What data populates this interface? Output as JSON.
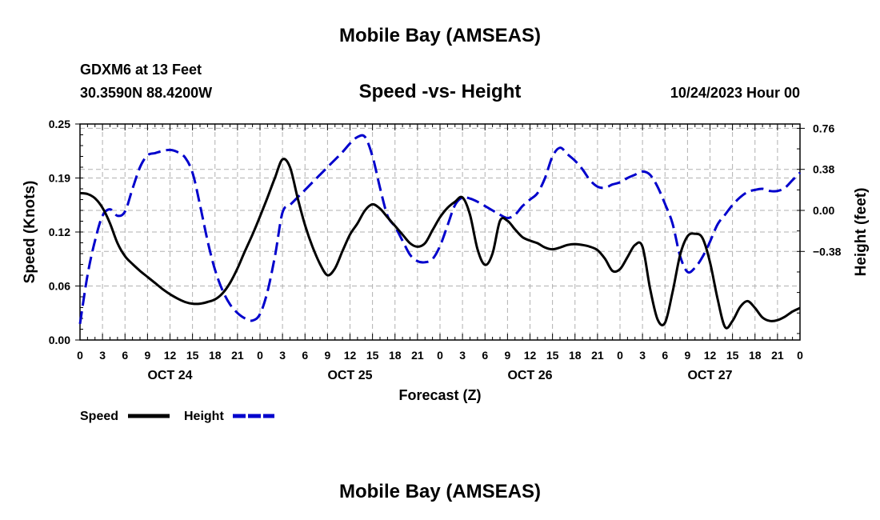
{
  "page": {
    "title": "Mobile Bay (AMSEAS)",
    "station": "GDXM6 at 13 Feet",
    "coordinates": "30.3590N  88.4200W",
    "subtitle": "Speed -vs- Height",
    "datetime": "10/24/2023 Hour 00",
    "bottom_title": "Mobile Bay (AMSEAS)"
  },
  "chart_data": {
    "type": "line",
    "title": "Speed -vs- Height",
    "xlabel": "Forecast (Z)",
    "ylabel": "Speed (Knots)",
    "y2label": "Height (feet)",
    "xlim": [
      0,
      96
    ],
    "ylim": [
      0.0,
      0.25
    ],
    "y2lim": [
      -1.2,
      0.8
    ],
    "grid": true,
    "legend_position": "bottom-left",
    "x_ticks": [
      0,
      3,
      6,
      9,
      12,
      15,
      18,
      21,
      24,
      27,
      30,
      33,
      36,
      39,
      42,
      45,
      48,
      51,
      54,
      57,
      60,
      63,
      66,
      69,
      72,
      75,
      78,
      81,
      84,
      87,
      90,
      93,
      96
    ],
    "x_tick_labels": [
      "0",
      "3",
      "6",
      "9",
      "12",
      "15",
      "18",
      "21",
      "0",
      "3",
      "6",
      "9",
      "12",
      "15",
      "18",
      "21",
      "0",
      "3",
      "6",
      "9",
      "12",
      "15",
      "18",
      "21",
      "0",
      "3",
      "6",
      "9",
      "12",
      "15",
      "18",
      "21",
      "0"
    ],
    "day_labels": [
      {
        "x": 12,
        "label": "OCT 24"
      },
      {
        "x": 36,
        "label": "OCT 25"
      },
      {
        "x": 60,
        "label": "OCT 26"
      },
      {
        "x": 84,
        "label": "OCT 27"
      }
    ],
    "y_ticks": [
      0.0,
      0.0625,
      0.125,
      0.1875,
      0.25
    ],
    "y_tick_labels": [
      "0.00",
      "0.06",
      "0.12",
      "0.19",
      "0.25"
    ],
    "y2_ticks": [
      -0.38,
      0.0,
      0.38,
      0.76
    ],
    "y2_tick_labels": [
      "-0.38",
      "0.00",
      "0.38",
      "0.76"
    ],
    "series": [
      {
        "name": "Speed",
        "axis": "left",
        "color": "#000000",
        "dash": "solid",
        "points": [
          [
            0,
            0.17
          ],
          [
            1,
            0.169
          ],
          [
            2,
            0.164
          ],
          [
            3,
            0.153
          ],
          [
            4,
            0.135
          ],
          [
            5,
            0.112
          ],
          [
            6,
            0.097
          ],
          [
            7,
            0.088
          ],
          [
            8,
            0.08
          ],
          [
            9,
            0.073
          ],
          [
            10,
            0.066
          ],
          [
            11,
            0.059
          ],
          [
            12,
            0.053
          ],
          [
            13,
            0.048
          ],
          [
            14,
            0.044
          ],
          [
            15,
            0.042
          ],
          [
            16,
            0.042
          ],
          [
            17,
            0.044
          ],
          [
            18,
            0.047
          ],
          [
            19,
            0.054
          ],
          [
            20,
            0.066
          ],
          [
            21,
            0.083
          ],
          [
            22,
            0.103
          ],
          [
            23,
            0.122
          ],
          [
            24,
            0.143
          ],
          [
            25,
            0.165
          ],
          [
            26,
            0.188
          ],
          [
            27,
            0.209
          ],
          [
            28,
            0.2
          ],
          [
            29,
            0.165
          ],
          [
            30,
            0.133
          ],
          [
            31,
            0.108
          ],
          [
            32,
            0.088
          ],
          [
            33,
            0.075
          ],
          [
            34,
            0.083
          ],
          [
            35,
            0.103
          ],
          [
            36,
            0.122
          ],
          [
            37,
            0.135
          ],
          [
            38,
            0.15
          ],
          [
            39,
            0.157
          ],
          [
            40,
            0.152
          ],
          [
            41,
            0.142
          ],
          [
            42,
            0.132
          ],
          [
            43,
            0.122
          ],
          [
            44,
            0.112
          ],
          [
            45,
            0.108
          ],
          [
            46,
            0.112
          ],
          [
            47,
            0.127
          ],
          [
            48,
            0.142
          ],
          [
            49,
            0.153
          ],
          [
            50,
            0.16
          ],
          [
            51,
            0.165
          ],
          [
            52,
            0.145
          ],
          [
            53,
            0.105
          ],
          [
            54,
            0.087
          ],
          [
            55,
            0.1
          ],
          [
            56,
            0.138
          ],
          [
            57,
            0.138
          ],
          [
            58,
            0.128
          ],
          [
            59,
            0.119
          ],
          [
            60,
            0.115
          ],
          [
            61,
            0.112
          ],
          [
            62,
            0.107
          ],
          [
            63,
            0.105
          ],
          [
            64,
            0.107
          ],
          [
            65,
            0.11
          ],
          [
            66,
            0.111
          ],
          [
            67,
            0.11
          ],
          [
            68,
            0.108
          ],
          [
            69,
            0.104
          ],
          [
            70,
            0.094
          ],
          [
            71,
            0.08
          ],
          [
            72,
            0.082
          ],
          [
            73,
            0.096
          ],
          [
            74,
            0.11
          ],
          [
            75,
            0.108
          ],
          [
            76,
            0.06
          ],
          [
            77,
            0.024
          ],
          [
            78,
            0.02
          ],
          [
            79,
            0.055
          ],
          [
            80,
            0.098
          ],
          [
            81,
            0.12
          ],
          [
            82,
            0.123
          ],
          [
            83,
            0.118
          ],
          [
            84,
            0.09
          ],
          [
            85,
            0.048
          ],
          [
            86,
            0.015
          ],
          [
            87,
            0.022
          ],
          [
            88,
            0.038
          ],
          [
            89,
            0.045
          ],
          [
            90,
            0.037
          ],
          [
            91,
            0.026
          ],
          [
            92,
            0.022
          ],
          [
            93,
            0.023
          ],
          [
            94,
            0.027
          ],
          [
            95,
            0.033
          ],
          [
            96,
            0.037
          ]
        ]
      },
      {
        "name": "Height",
        "axis": "right",
        "color": "#0000cc",
        "dash": "dashed",
        "points": [
          [
            0,
            -1.05
          ],
          [
            1,
            -0.6
          ],
          [
            2,
            -0.28
          ],
          [
            3,
            -0.05
          ],
          [
            4,
            0.01
          ],
          [
            5,
            -0.05
          ],
          [
            6,
            -0.01
          ],
          [
            7,
            0.2
          ],
          [
            8,
            0.4
          ],
          [
            9,
            0.51
          ],
          [
            10,
            0.53
          ],
          [
            11,
            0.55
          ],
          [
            12,
            0.56
          ],
          [
            13,
            0.54
          ],
          [
            14,
            0.49
          ],
          [
            15,
            0.35
          ],
          [
            16,
            0.05
          ],
          [
            17,
            -0.28
          ],
          [
            18,
            -0.55
          ],
          [
            19,
            -0.74
          ],
          [
            20,
            -0.87
          ],
          [
            21,
            -0.95
          ],
          [
            22,
            -1.0
          ],
          [
            23,
            -1.02
          ],
          [
            24,
            -0.96
          ],
          [
            25,
            -0.75
          ],
          [
            26,
            -0.42
          ],
          [
            27,
            -0.02
          ],
          [
            28,
            0.05
          ],
          [
            29,
            0.12
          ],
          [
            30,
            0.19
          ],
          [
            31,
            0.26
          ],
          [
            32,
            0.33
          ],
          [
            33,
            0.4
          ],
          [
            34,
            0.47
          ],
          [
            35,
            0.54
          ],
          [
            36,
            0.62
          ],
          [
            37,
            0.68
          ],
          [
            38,
            0.68
          ],
          [
            39,
            0.5
          ],
          [
            40,
            0.21
          ],
          [
            41,
            -0.05
          ],
          [
            42,
            -0.15
          ],
          [
            43,
            -0.28
          ],
          [
            44,
            -0.41
          ],
          [
            45,
            -0.47
          ],
          [
            46,
            -0.48
          ],
          [
            47,
            -0.45
          ],
          [
            48,
            -0.33
          ],
          [
            49,
            -0.14
          ],
          [
            50,
            0.05
          ],
          [
            51,
            0.12
          ],
          [
            52,
            0.11
          ],
          [
            53,
            0.08
          ],
          [
            54,
            0.04
          ],
          [
            55,
            0.0
          ],
          [
            56,
            -0.04
          ],
          [
            57,
            -0.07
          ],
          [
            58,
            -0.04
          ],
          [
            59,
            0.04
          ],
          [
            60,
            0.1
          ],
          [
            61,
            0.16
          ],
          [
            62,
            0.3
          ],
          [
            63,
            0.5
          ],
          [
            64,
            0.58
          ],
          [
            65,
            0.52
          ],
          [
            66,
            0.46
          ],
          [
            67,
            0.38
          ],
          [
            68,
            0.28
          ],
          [
            69,
            0.22
          ],
          [
            70,
            0.21
          ],
          [
            71,
            0.24
          ],
          [
            72,
            0.26
          ],
          [
            73,
            0.3
          ],
          [
            74,
            0.33
          ],
          [
            75,
            0.36
          ],
          [
            76,
            0.33
          ],
          [
            77,
            0.22
          ],
          [
            78,
            0.06
          ],
          [
            79,
            -0.12
          ],
          [
            80,
            -0.42
          ],
          [
            81,
            -0.57
          ],
          [
            82,
            -0.53
          ],
          [
            83,
            -0.43
          ],
          [
            84,
            -0.29
          ],
          [
            85,
            -0.13
          ],
          [
            86,
            -0.04
          ],
          [
            87,
            0.05
          ],
          [
            88,
            0.12
          ],
          [
            89,
            0.17
          ],
          [
            90,
            0.19
          ],
          [
            91,
            0.2
          ],
          [
            92,
            0.18
          ],
          [
            93,
            0.18
          ],
          [
            94,
            0.21
          ],
          [
            95,
            0.28
          ],
          [
            96,
            0.35
          ]
        ]
      }
    ],
    "legend": [
      {
        "label": "Speed",
        "color": "#000000",
        "dash": "solid"
      },
      {
        "label": "Height",
        "color": "#0000cc",
        "dash": "dashed"
      }
    ]
  }
}
